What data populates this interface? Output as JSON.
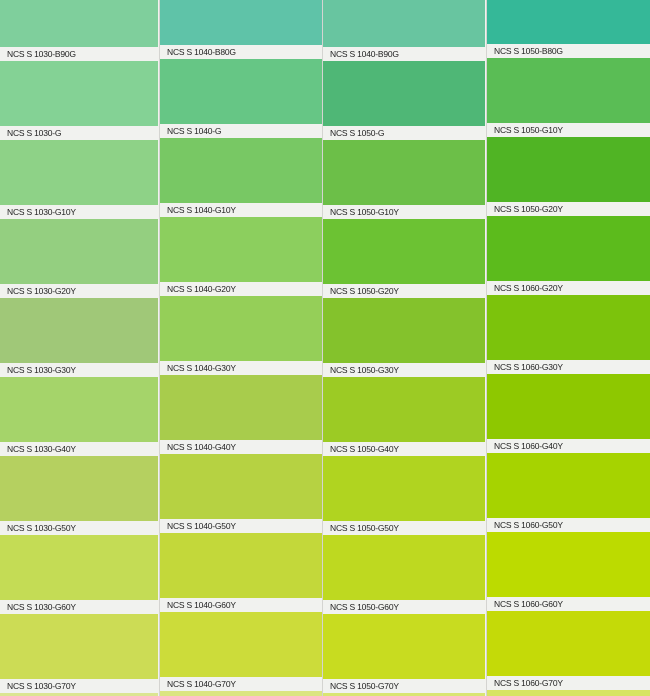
{
  "columns": [
    {
      "swatches": [
        {
          "label": "NCS S 1030-B90G",
          "color": "#7fcf9c"
        },
        {
          "label": "NCS S 1030-G",
          "color": "#84d295"
        },
        {
          "label": "NCS S 1030-G10Y",
          "color": "#8ed287"
        },
        {
          "label": "NCS S 1030-G20Y",
          "color": "#94cf80"
        },
        {
          "label": "NCS S 1030-G30Y",
          "color": "#a0c878"
        },
        {
          "label": "NCS S 1030-G40Y",
          "color": "#a5d46a"
        },
        {
          "label": "NCS S 1030-G50Y",
          "color": "#b5d060"
        },
        {
          "label": "NCS S 1030-G60Y",
          "color": "#c4dc55"
        },
        {
          "label": "NCS S 1030-G70Y",
          "color": "#ccdc55"
        }
      ]
    },
    {
      "swatches": [
        {
          "label": "NCS S 1040-B80G",
          "color": "#5fc3a8"
        },
        {
          "label": "NCS S 1040-G",
          "color": "#66c685"
        },
        {
          "label": "NCS S 1040-G10Y",
          "color": "#78c864"
        },
        {
          "label": "NCS S 1040-G20Y",
          "color": "#8ccf5e"
        },
        {
          "label": "NCS S 1040-G30Y",
          "color": "#95cf58"
        },
        {
          "label": "NCS S 1040-G40Y",
          "color": "#a8cc4c"
        },
        {
          "label": "NCS S 1040-G50Y",
          "color": "#b6d242"
        },
        {
          "label": "NCS S 1040-G60Y",
          "color": "#c3d83a"
        },
        {
          "label": "NCS S 1040-G70Y",
          "color": "#ccdc3a"
        }
      ]
    },
    {
      "swatches": [
        {
          "label": "NCS S 1040-B90G",
          "color": "#68c5a0"
        },
        {
          "label": "NCS S 1050-G",
          "color": "#4fb776"
        },
        {
          "label": "NCS S 1050-G10Y",
          "color": "#6cbf48"
        },
        {
          "label": "NCS S 1050-G20Y",
          "color": "#6cc233"
        },
        {
          "label": "NCS S 1050-G30Y",
          "color": "#84c22c"
        },
        {
          "label": "NCS S 1050-G40Y",
          "color": "#9ccb24"
        },
        {
          "label": "NCS S 1050-G50Y",
          "color": "#b0d420"
        },
        {
          "label": "NCS S 1050-G60Y",
          "color": "#bed920"
        },
        {
          "label": "NCS S 1050-G70Y",
          "color": "#c8dc20"
        }
      ]
    },
    {
      "swatches": [
        {
          "label": "NCS S 1050-B80G",
          "color": "#35b898"
        },
        {
          "label": "NCS S 1050-G10Y",
          "color": "#5abd55"
        },
        {
          "label": "NCS S 1050-G20Y",
          "color": "#50b424"
        },
        {
          "label": "NCS S 1060-G20Y",
          "color": "#5cbb1c"
        },
        {
          "label": "NCS S 1060-G30Y",
          "color": "#7cc30c"
        },
        {
          "label": "NCS S 1060-G40Y",
          "color": "#8ec800"
        },
        {
          "label": "NCS S 1060-G50Y",
          "color": "#a6d300"
        },
        {
          "label": "NCS S 1060-G60Y",
          "color": "#bcdb00"
        },
        {
          "label": "NCS S 1060-G70Y",
          "color": "#c4da08"
        }
      ]
    }
  ]
}
